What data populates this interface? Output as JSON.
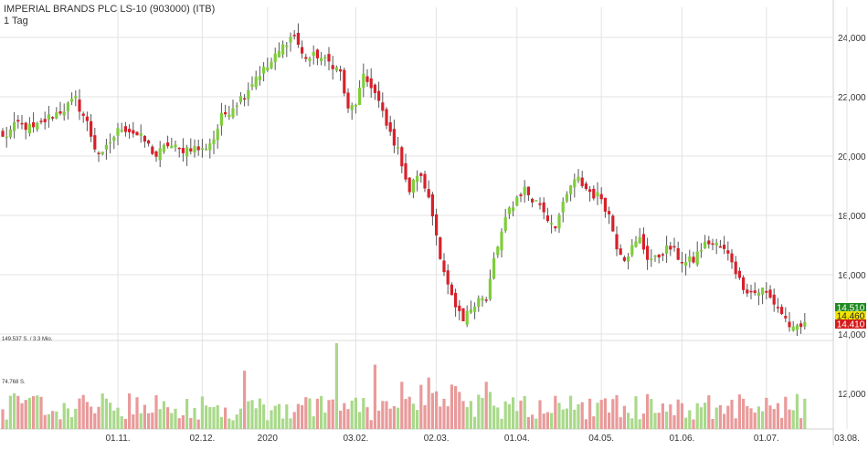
{
  "header": {
    "title": "IMPERIAL BRANDS PLC LS-10 (903000) (ITB)",
    "interval": "1 Tag"
  },
  "volume_axis": {
    "label_top": "149.537 S. / 3.3 Mio.",
    "label_mid": "74.768 S."
  },
  "price_badges": [
    {
      "label": "14.510",
      "bg": "#1f8a1f",
      "fg": "#ffffff"
    },
    {
      "label": "14.460",
      "bg": "#f2e600",
      "fg": "#222222"
    },
    {
      "label": "14.410",
      "bg": "#d51a1a",
      "fg": "#ffffff"
    }
  ],
  "colors": {
    "up": "#7fcd3c",
    "down": "#d8202a",
    "vol_up": "#a9d98a",
    "vol_down": "#e99a9a",
    "grid": "#e3e3e3"
  },
  "chart_data": {
    "type": "candlestick",
    "title": "IMPERIAL BRANDS PLC LS-10 (903000) (ITB)",
    "interval": "1 Tag",
    "y_ticks": [
      "24,000",
      "22,000",
      "20,000",
      "18,000",
      "16,000",
      "14,000",
      "12,000"
    ],
    "y_tick_values": [
      24,
      22,
      20,
      18,
      16,
      14,
      12
    ],
    "ylim": [
      12,
      24.5
    ],
    "x_ticks": [
      "01.11.",
      "02.12.",
      "2020",
      "03.02.",
      "02.03.",
      "01.04.",
      "04.05.",
      "01.06.",
      "01.07.",
      "03.08."
    ],
    "x_tick_index": [
      30,
      52,
      69,
      92,
      113,
      134,
      156,
      177,
      199,
      220
    ],
    "grid": true,
    "anchors": [
      [
        0,
        20.6
      ],
      [
        4,
        21.1
      ],
      [
        8,
        20.9
      ],
      [
        12,
        21.3
      ],
      [
        16,
        21.6
      ],
      [
        19,
        21.9
      ],
      [
        22,
        21.1
      ],
      [
        24,
        20.3
      ],
      [
        26,
        20.0
      ],
      [
        28,
        20.5
      ],
      [
        31,
        21.0
      ],
      [
        34,
        20.8
      ],
      [
        37,
        20.5
      ],
      [
        40,
        20.0
      ],
      [
        43,
        20.4
      ],
      [
        46,
        20.2
      ],
      [
        49,
        20.3
      ],
      [
        52,
        20.2
      ],
      [
        55,
        20.6
      ],
      [
        57,
        21.3
      ],
      [
        60,
        21.7
      ],
      [
        63,
        22.1
      ],
      [
        66,
        22.7
      ],
      [
        69,
        23.0
      ],
      [
        72,
        23.5
      ],
      [
        74,
        23.9
      ],
      [
        76,
        24.1
      ],
      [
        78,
        23.4
      ],
      [
        80,
        23.3
      ],
      [
        82,
        23.4
      ],
      [
        84,
        23.2
      ],
      [
        86,
        23.1
      ],
      [
        88,
        22.8
      ],
      [
        90,
        21.5
      ],
      [
        92,
        21.8
      ],
      [
        94,
        22.6
      ],
      [
        96,
        22.4
      ],
      [
        98,
        21.8
      ],
      [
        100,
        21.0
      ],
      [
        102,
        20.5
      ],
      [
        104,
        19.8
      ],
      [
        106,
        18.8
      ],
      [
        108,
        19.4
      ],
      [
        110,
        19.0
      ],
      [
        112,
        18.0
      ],
      [
        114,
        16.7
      ],
      [
        116,
        15.6
      ],
      [
        118,
        14.8
      ],
      [
        120,
        14.4
      ],
      [
        122,
        14.9
      ],
      [
        124,
        15.3
      ],
      [
        126,
        15.1
      ],
      [
        128,
        16.5
      ],
      [
        130,
        17.4
      ],
      [
        132,
        18.2
      ],
      [
        134,
        18.6
      ],
      [
        136,
        18.9
      ],
      [
        138,
        18.5
      ],
      [
        140,
        18.4
      ],
      [
        142,
        17.9
      ],
      [
        144,
        17.7
      ],
      [
        146,
        18.3
      ],
      [
        148,
        19.0
      ],
      [
        150,
        19.2
      ],
      [
        152,
        18.9
      ],
      [
        154,
        18.7
      ],
      [
        156,
        18.6
      ],
      [
        158,
        18.0
      ],
      [
        160,
        17.0
      ],
      [
        162,
        16.6
      ],
      [
        164,
        16.9
      ],
      [
        166,
        17.2
      ],
      [
        168,
        16.6
      ],
      [
        170,
        16.5
      ],
      [
        172,
        16.8
      ],
      [
        174,
        16.9
      ],
      [
        176,
        16.6
      ],
      [
        178,
        16.4
      ],
      [
        180,
        16.5
      ],
      [
        182,
        16.9
      ],
      [
        184,
        17.1
      ],
      [
        186,
        17.0
      ],
      [
        188,
        16.8
      ],
      [
        190,
        16.5
      ],
      [
        192,
        15.8
      ],
      [
        194,
        15.5
      ],
      [
        196,
        15.4
      ],
      [
        198,
        15.5
      ],
      [
        200,
        15.2
      ],
      [
        202,
        14.9
      ],
      [
        204,
        14.5
      ],
      [
        206,
        14.1
      ],
      [
        208,
        14.2
      ],
      [
        209,
        14.41
      ]
    ],
    "last_close": 14.41
  }
}
